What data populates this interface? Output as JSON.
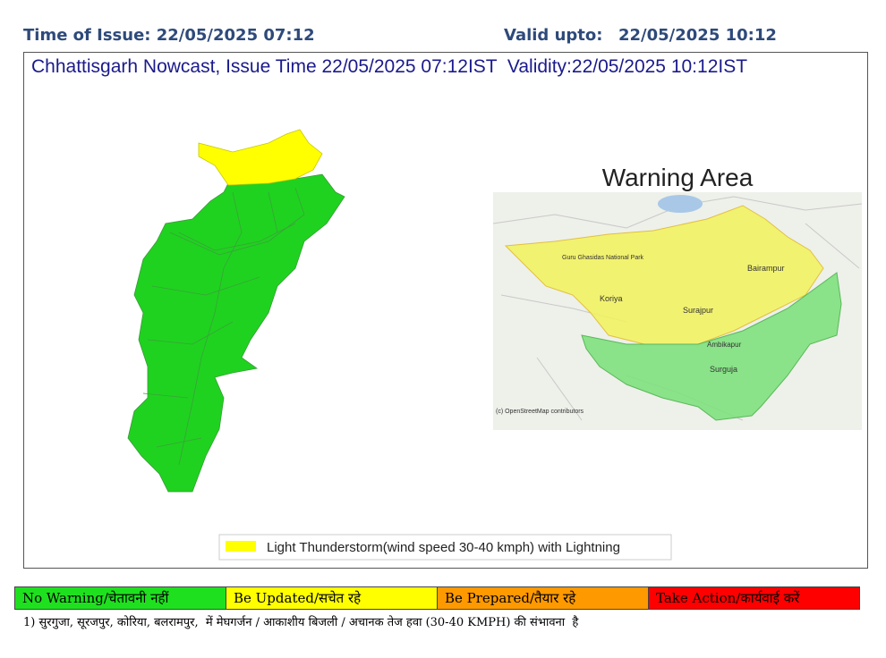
{
  "header": {
    "issue": "Time of Issue: 22/05/2025 07:12",
    "valid_label": "Valid upto:",
    "valid_time": "22/05/2025 10:12"
  },
  "map": {
    "title": "Chhattisgarh Nowcast, Issue Time 22/05/2025 07:12IST  Validity:22/05/2025 10:12IST",
    "inset_title": "Warning Area",
    "inset_labels": [
      "Koriya",
      "Surajpur",
      "Bairampur",
      "Ambikapur",
      "Surguja",
      "Guru Ghasidas National Park",
      "(c) OpenStreetMap contributors"
    ],
    "legend": "Light Thunderstorm(wind speed 30-40 kmph) with Lightning"
  },
  "warning_levels": [
    "No Warning/चेतावनी नहीं",
    "Be Updated/सचेत रहे",
    "Be Prepared/तैयार रहे",
    "Take Action/कार्यवाई करें"
  ],
  "note": "1) सुरगुजा, सूरजपुर, कोरिया, बलरामपुर,  में मेघगर्जन / आकाशीय बिजली / अचानक तेज हवा (30-40 KMPH) की संभावना  है"
}
